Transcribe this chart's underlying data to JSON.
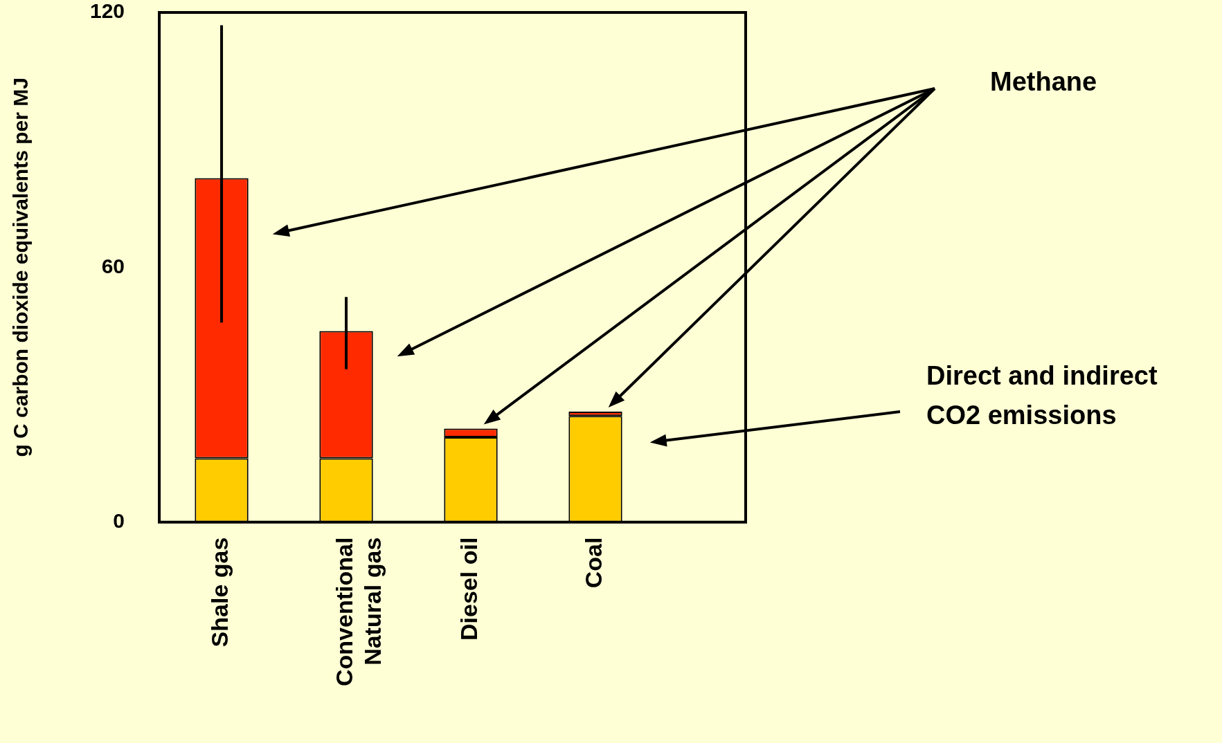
{
  "chart_data": {
    "type": "bar",
    "stacked": true,
    "ylabel": "g C carbon dioxide equivalents per MJ",
    "categories": [
      "Shale gas",
      "Conventional Natural gas",
      "Diesel oil",
      "Coal"
    ],
    "series": [
      {
        "name": "Direct and indirect CO2 emissions",
        "color": "#ffcc00",
        "values": [
          15,
          15,
          20,
          25
        ]
      },
      {
        "name": "Methane",
        "color": "#ff2a00",
        "values": [
          66,
          30,
          2,
          1
        ],
        "errors": [
          [
            47,
            117
          ],
          [
            36,
            53
          ],
          null,
          null
        ]
      }
    ],
    "ylim": [
      0,
      120
    ],
    "yticks": [
      0,
      60,
      120
    ],
    "grid": false,
    "legend": false
  }
}
